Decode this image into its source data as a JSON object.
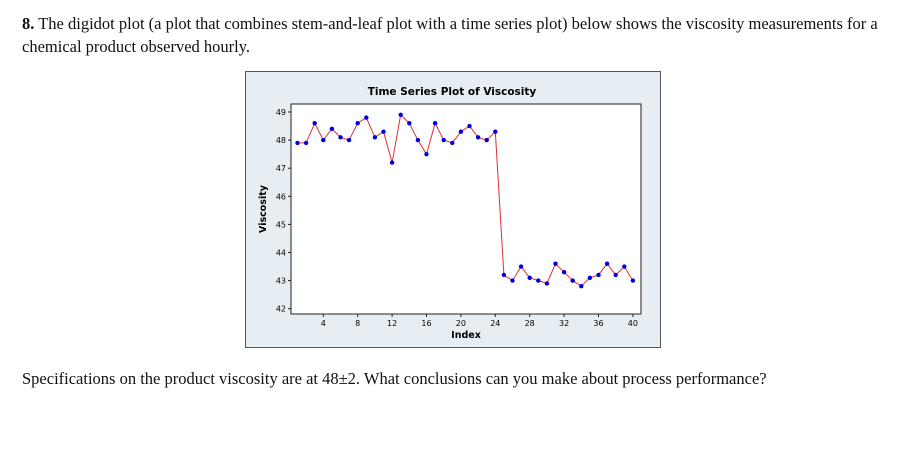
{
  "question": {
    "number": "8.",
    "text": "The digidot plot (a plot that combines stem-and-leaf plot with a time series plot) below shows the viscosity measurements for a chemical product observed hourly."
  },
  "followup": "Specifications on the product viscosity are at 48±2. What conclusions can you make about process performance?",
  "chart_data": {
    "type": "line",
    "title": "Time Series Plot of Viscosity",
    "xlabel": "Index",
    "ylabel": "Viscosity",
    "xlim": [
      0,
      41
    ],
    "ylim": [
      42,
      49
    ],
    "xticks": [
      4,
      8,
      12,
      16,
      20,
      24,
      28,
      32,
      36,
      40
    ],
    "yticks": [
      42,
      43,
      44,
      45,
      46,
      47,
      48,
      49
    ],
    "grid": false,
    "line_color": "#e03030",
    "marker_color": "#0000dd",
    "x": [
      1,
      2,
      3,
      4,
      5,
      6,
      7,
      8,
      9,
      10,
      11,
      12,
      13,
      14,
      15,
      16,
      17,
      18,
      19,
      20,
      21,
      22,
      23,
      24,
      25,
      26,
      27,
      28,
      29,
      30,
      31,
      32,
      33,
      34,
      35,
      36,
      37,
      38,
      39,
      40
    ],
    "values": [
      47.9,
      47.9,
      48.6,
      48.0,
      48.4,
      48.1,
      48.0,
      48.6,
      48.8,
      48.1,
      48.3,
      47.2,
      48.9,
      48.6,
      48.0,
      47.5,
      48.6,
      48.0,
      47.9,
      48.3,
      48.5,
      48.1,
      48.0,
      48.3,
      43.2,
      43.0,
      43.5,
      43.1,
      43.0,
      42.9,
      43.6,
      43.3,
      43.0,
      42.8,
      43.1,
      43.2,
      43.6,
      43.2,
      43.5,
      43.0
    ]
  }
}
